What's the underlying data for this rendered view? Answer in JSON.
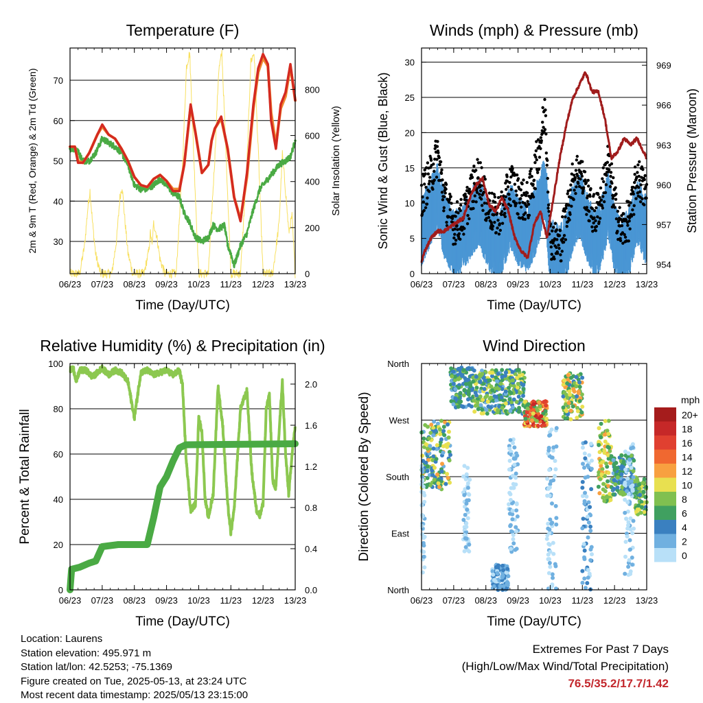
{
  "footer": {
    "location": "Location: Laurens",
    "elevation": "Station elevation: 495.971 m",
    "latlon": "Station lat/lon: 42.5253; -75.1369",
    "created": "Figure created on Tue, 2025-05-13, at 23:24 UTC",
    "latest": "Most recent data timestamp: 2025/05/13 23:15:00",
    "extremes_title": "Extremes For Past 7 Days",
    "extremes_subtitle": "(High/Low/Max Wind/Total Precipitation)",
    "extremes_values": "76.5/35.2/17.7/1.42"
  },
  "colors": {
    "temp2m": "#d42a20",
    "temp9m": "#f08a30",
    "dewpoint": "#4aaa44",
    "solar": "#f8e060",
    "gust": "#000000",
    "wind": "#4a96d4",
    "pressure": "#a01c1c",
    "rh": "#8cc850",
    "precip": "#4aaa44"
  },
  "chart_data": [
    {
      "id": "temperature",
      "type": "line",
      "title": "Temperature (F)",
      "xlabel": "Time (Day/UTC)",
      "ylabel": "2m & 9m T (Red, Orange) & 2m Td (Green)",
      "ylabel_right": "Solar Insolation (Yellow)",
      "xticks": [
        "06/23",
        "07/23",
        "08/23",
        "09/23",
        "10/23",
        "11/23",
        "12/23",
        "13/23"
      ],
      "xlim": [
        6,
        13
      ],
      "ylim": [
        22,
        78
      ],
      "yticks": [
        30,
        40,
        50,
        60,
        70
      ],
      "ylim_right": [
        0,
        980
      ],
      "yticks_right": [
        0,
        200,
        400,
        600,
        800
      ],
      "grid": "horizontal",
      "series": [
        {
          "key": "temp9m",
          "axis": "left",
          "width": 3.5,
          "x": [
            6.0,
            6.15,
            6.25,
            6.4,
            6.6,
            6.85,
            7.0,
            7.2,
            7.4,
            7.6,
            7.8,
            8.0,
            8.2,
            8.4,
            8.6,
            8.8,
            9.0,
            9.2,
            9.4,
            9.55,
            9.75,
            9.9,
            10.1,
            10.3,
            10.4,
            10.5,
            10.7,
            10.9,
            11.1,
            11.3,
            11.5,
            11.7,
            11.85,
            12.0,
            12.15,
            12.25,
            12.4,
            12.55,
            12.7,
            12.85,
            13.0
          ],
          "y": [
            53.5,
            53.5,
            50,
            49.5,
            52,
            56.5,
            58.5,
            56.5,
            55.5,
            53,
            50,
            46,
            44,
            43.5,
            45.5,
            46.5,
            45,
            43,
            43,
            49,
            63.5,
            57,
            47,
            49,
            55,
            58,
            60.5,
            53,
            41,
            35.5,
            46,
            63,
            72,
            75.5,
            73.5,
            62,
            54,
            63,
            66,
            73.5,
            65
          ]
        },
        {
          "key": "temp2m",
          "axis": "left",
          "width": 3.5,
          "x": [
            6.0,
            6.15,
            6.25,
            6.4,
            6.6,
            6.85,
            7.0,
            7.2,
            7.4,
            7.6,
            7.8,
            8.0,
            8.2,
            8.4,
            8.6,
            8.8,
            9.0,
            9.2,
            9.4,
            9.55,
            9.75,
            9.9,
            10.1,
            10.3,
            10.4,
            10.5,
            10.7,
            10.9,
            11.1,
            11.3,
            11.5,
            11.7,
            11.85,
            12.0,
            12.15,
            12.25,
            12.4,
            12.55,
            12.7,
            12.85,
            13.0
          ],
          "y": [
            53.5,
            53.5,
            49.5,
            49.5,
            52,
            56.5,
            59,
            56.5,
            55.5,
            53,
            50,
            46,
            44,
            43.5,
            45.5,
            46.5,
            45,
            42.5,
            42.5,
            49,
            64,
            57,
            47,
            49,
            55,
            58,
            61,
            53,
            41,
            35,
            47,
            64,
            73,
            76.5,
            74,
            60,
            53,
            64,
            67,
            74,
            65
          ]
        },
        {
          "key": "dewpoint",
          "axis": "left",
          "width": 2,
          "x": [
            6.0,
            6.2,
            6.4,
            6.6,
            6.8,
            7.0,
            7.2,
            7.4,
            7.6,
            7.8,
            8.0,
            8.2,
            8.4,
            8.6,
            8.8,
            9.0,
            9.2,
            9.4,
            9.55,
            9.7,
            9.9,
            10.1,
            10.3,
            10.45,
            10.6,
            10.8,
            10.9,
            11.0,
            11.1,
            11.3,
            11.5,
            11.7,
            11.9,
            12.1,
            12.3,
            12.5,
            12.7,
            12.85,
            13.0
          ],
          "y": [
            53,
            53,
            50,
            50,
            52,
            55.5,
            54.5,
            53.5,
            52,
            49,
            44,
            43,
            43,
            44,
            45.5,
            44,
            42,
            41,
            37,
            35,
            31,
            30,
            31,
            34,
            33,
            34,
            29,
            27,
            24,
            29,
            32,
            38,
            43,
            45,
            47,
            49,
            50,
            51,
            55
          ]
        },
        {
          "key": "solar",
          "axis": "right",
          "width": 1,
          "x": [
            6.0,
            6.3,
            6.45,
            6.55,
            6.62,
            6.7,
            6.8,
            6.95,
            7.3,
            7.45,
            7.55,
            7.62,
            7.7,
            7.8,
            7.95,
            8.3,
            8.45,
            8.5,
            8.55,
            8.6,
            8.7,
            8.8,
            8.95,
            9.3,
            9.5,
            9.62,
            9.72,
            9.85,
            10.0,
            10.3,
            10.5,
            10.62,
            10.72,
            10.85,
            11.0,
            11.3,
            11.5,
            11.62,
            11.72,
            11.85,
            12.0,
            12.3,
            12.5,
            12.6,
            12.7,
            12.8,
            12.9,
            13.0
          ],
          "y": [
            0,
            0,
            120,
            280,
            360,
            220,
            80,
            0,
            0,
            150,
            330,
            380,
            240,
            90,
            0,
            0,
            100,
            180,
            120,
            220,
            160,
            60,
            0,
            0,
            480,
            900,
            960,
            500,
            0,
            0,
            500,
            880,
            960,
            520,
            0,
            0,
            480,
            920,
            960,
            540,
            0,
            0,
            220,
            520,
            360,
            180,
            250,
            0
          ]
        }
      ]
    },
    {
      "id": "winds",
      "type": "scatter",
      "title": "Winds (mph) & Pressure (mb)",
      "xlabel": "Time (Day/UTC)",
      "ylabel": "Sonic Wind & Gust (Blue, Black)",
      "ylabel_right": "Station Pressure (Maroon)",
      "xticks": [
        "06/23",
        "07/23",
        "08/23",
        "09/23",
        "10/23",
        "11/23",
        "12/23",
        "13/23"
      ],
      "xlim": [
        6,
        13
      ],
      "ylim": [
        0,
        32
      ],
      "yticks": [
        0,
        5,
        10,
        15,
        20,
        25,
        30
      ],
      "ylim_right": [
        953.3,
        970.3
      ],
      "yticks_right": [
        954,
        957,
        960,
        963,
        966,
        969
      ],
      "grid": "horizontal",
      "wind_envelope": {
        "x": [
          6.0,
          6.3,
          6.5,
          6.7,
          7.0,
          7.3,
          7.5,
          7.8,
          8.0,
          8.3,
          8.5,
          8.8,
          9.0,
          9.3,
          9.5,
          9.7,
          9.85,
          10.0,
          10.3,
          10.5,
          10.7,
          10.9,
          11.2,
          11.4,
          11.6,
          11.8,
          12.0,
          12.2,
          12.5,
          12.7,
          13.0
        ],
        "mean": [
          6,
          9,
          11,
          7,
          4,
          5,
          7,
          9,
          6,
          4,
          5,
          8,
          6,
          5,
          7,
          10,
          12,
          3,
          2,
          4,
          8,
          10,
          6,
          4,
          6,
          10,
          5,
          3,
          5,
          9,
          6
        ],
        "gust": [
          11,
          14,
          17,
          11,
          7,
          8,
          11,
          14,
          10,
          8,
          9,
          13,
          11,
          10,
          14,
          19,
          23,
          5,
          4,
          8,
          13,
          15,
          10,
          8,
          11,
          16,
          10,
          6,
          8,
          14,
          11
        ]
      },
      "series": [
        {
          "key": "pressure",
          "axis": "right",
          "width": 3,
          "x": [
            6.0,
            6.1,
            6.3,
            6.5,
            6.7,
            7.0,
            7.3,
            7.5,
            7.7,
            7.9,
            8.1,
            8.3,
            8.5,
            8.7,
            8.9,
            9.1,
            9.3,
            9.5,
            9.7,
            9.9,
            10.1,
            10.3,
            10.5,
            10.7,
            10.9,
            11.1,
            11.3,
            11.5,
            11.7,
            11.9,
            12.1,
            12.3,
            12.5,
            12.7,
            12.9,
            13.0
          ],
          "y": [
            954.2,
            955,
            956,
            956.5,
            956.5,
            957,
            957.5,
            959,
            960,
            960.5,
            958.5,
            958,
            959,
            958,
            956,
            955,
            954.5,
            957,
            958,
            956,
            959,
            962,
            964.5,
            966.5,
            967.5,
            968.5,
            967,
            967,
            965,
            962,
            962.5,
            963.5,
            963,
            963.5,
            962.5,
            962
          ]
        }
      ]
    },
    {
      "id": "humidity",
      "type": "line",
      "title": "Relative Humidity (%) & Precipitation (in)",
      "xlabel": "Time (Day/UTC)",
      "ylabel": "Percent & Total Rainfall",
      "xticks": [
        "06/23",
        "07/23",
        "08/23",
        "09/23",
        "10/23",
        "11/23",
        "12/23",
        "13/23"
      ],
      "xlim": [
        6,
        13
      ],
      "ylim": [
        0,
        100
      ],
      "yticks": [
        0,
        20,
        40,
        60,
        80,
        100
      ],
      "ylim_right": [
        0,
        2.2
      ],
      "yticks_right": [
        "0.0",
        "0.4",
        "0.8",
        "1.2",
        "1.6",
        "2.0"
      ],
      "grid": "horizontal",
      "series": [
        {
          "key": "rh",
          "name": "Relative Humidity",
          "axis": "left",
          "width": 3.5,
          "x": [
            6.0,
            6.1,
            6.2,
            6.3,
            6.5,
            6.7,
            7.0,
            7.2,
            7.4,
            7.6,
            7.8,
            8.0,
            8.2,
            8.4,
            8.6,
            8.8,
            9.0,
            9.2,
            9.4,
            9.5,
            9.6,
            9.75,
            9.9,
            10.0,
            10.1,
            10.2,
            10.3,
            10.45,
            10.6,
            10.75,
            10.9,
            11.0,
            11.1,
            11.3,
            11.5,
            11.65,
            11.8,
            11.9,
            12.0,
            12.1,
            12.2,
            12.3,
            12.4,
            12.5,
            12.6,
            12.7,
            12.8,
            12.9,
            13.0
          ],
          "y": [
            97,
            98,
            92,
            97,
            97,
            94,
            98,
            95,
            97,
            96,
            92,
            76,
            96,
            97,
            95,
            96,
            97,
            95,
            97,
            90,
            60,
            35,
            38,
            76,
            70,
            40,
            32,
            42,
            90,
            72,
            38,
            25,
            35,
            80,
            88,
            52,
            35,
            33,
            38,
            80,
            86,
            48,
            45,
            70,
            92,
            60,
            42,
            60,
            72
          ]
        },
        {
          "key": "precip",
          "name": "Total Precipitation",
          "axis": "right",
          "width": 10,
          "x": [
            6.0,
            6.05,
            6.3,
            6.6,
            6.8,
            7.0,
            7.5,
            8.0,
            8.4,
            8.6,
            8.8,
            9.0,
            9.2,
            9.4,
            9.6,
            13.0
          ],
          "y": [
            0.0,
            0.2,
            0.22,
            0.26,
            0.28,
            0.42,
            0.44,
            0.44,
            0.44,
            0.7,
            1.0,
            1.1,
            1.25,
            1.38,
            1.41,
            1.42
          ]
        }
      ]
    },
    {
      "id": "direction",
      "type": "scatter",
      "title": "Wind Direction",
      "xlabel": "Time (Day/UTC)",
      "ylabel": "Direction (Colored By Speed)",
      "xticks": [
        "06/23",
        "07/23",
        "08/23",
        "09/23",
        "10/23",
        "11/23",
        "12/23",
        "13/23"
      ],
      "xlim": [
        6,
        13
      ],
      "ylim": [
        0,
        360
      ],
      "yticks": [
        "North",
        "East",
        "South",
        "West",
        "North"
      ],
      "grid": "horizontal",
      "colorbar": {
        "unit": "mph",
        "labels": [
          "20+",
          "18",
          "16",
          "14",
          "12",
          "10",
          "8",
          "6",
          "4",
          "2",
          "0"
        ],
        "colors": [
          "#a51c1c",
          "#c62828",
          "#e04030",
          "#f06830",
          "#f8a040",
          "#e8e050",
          "#80c050",
          "#40a060",
          "#3a80c0",
          "#70b0e0",
          "#b8e0f8"
        ]
      },
      "clusters": [
        {
          "x": [
            6.0,
            6.9
          ],
          "y": [
            160,
            270
          ],
          "speed": [
            2,
            12
          ]
        },
        {
          "x": [
            6.9,
            7.6
          ],
          "y": [
            290,
            355
          ],
          "speed": [
            2,
            8
          ]
        },
        {
          "x": [
            7.6,
            9.2
          ],
          "y": [
            280,
            350
          ],
          "speed": [
            2,
            10
          ]
        },
        {
          "x": [
            9.2,
            9.9
          ],
          "y": [
            260,
            300
          ],
          "speed": [
            6,
            20
          ]
        },
        {
          "x": [
            10.4,
            11.0
          ],
          "y": [
            270,
            345
          ],
          "speed": [
            4,
            12
          ]
        },
        {
          "x": [
            11.5,
            11.9
          ],
          "y": [
            140,
            270
          ],
          "speed": [
            6,
            12
          ]
        },
        {
          "x": [
            11.9,
            12.6
          ],
          "y": [
            150,
            215
          ],
          "speed": [
            2,
            8
          ]
        },
        {
          "x": [
            12.6,
            13.0
          ],
          "y": [
            120,
            180
          ],
          "speed": [
            4,
            10
          ]
        },
        {
          "x": [
            6.0,
            6.1
          ],
          "y": [
            10,
            200
          ],
          "speed": [
            0,
            2
          ]
        },
        {
          "x": [
            7.3,
            7.5
          ],
          "y": [
            60,
            200
          ],
          "speed": [
            0,
            2
          ]
        },
        {
          "x": [
            8.2,
            8.7
          ],
          "y": [
            0,
            40
          ],
          "speed": [
            0,
            4
          ]
        },
        {
          "x": [
            8.7,
            9.0
          ],
          "y": [
            60,
            240
          ],
          "speed": [
            0,
            2
          ]
        },
        {
          "x": [
            9.9,
            10.2
          ],
          "y": [
            0,
            260
          ],
          "speed": [
            0,
            2
          ]
        },
        {
          "x": [
            11.0,
            11.3
          ],
          "y": [
            0,
            240
          ],
          "speed": [
            0,
            4
          ]
        },
        {
          "x": [
            12.3,
            12.6
          ],
          "y": [
            20,
            240
          ],
          "speed": [
            0,
            2
          ]
        }
      ]
    }
  ]
}
